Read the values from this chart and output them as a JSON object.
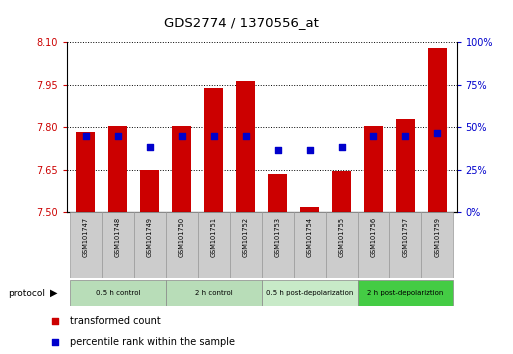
{
  "title": "GDS2774 / 1370556_at",
  "samples": [
    "GSM101747",
    "GSM101748",
    "GSM101749",
    "GSM101750",
    "GSM101751",
    "GSM101752",
    "GSM101753",
    "GSM101754",
    "GSM101755",
    "GSM101756",
    "GSM101757",
    "GSM101759"
  ],
  "bar_tops": [
    7.785,
    7.805,
    7.648,
    7.805,
    7.94,
    7.963,
    7.635,
    7.52,
    7.645,
    7.805,
    7.83,
    8.08
  ],
  "bar_bottoms": [
    7.5,
    7.5,
    7.5,
    7.5,
    7.5,
    7.5,
    7.5,
    7.5,
    7.5,
    7.5,
    7.5,
    7.5
  ],
  "blue_dot_values": [
    7.77,
    7.77,
    7.73,
    7.77,
    7.77,
    7.77,
    7.72,
    7.72,
    7.73,
    7.77,
    7.77,
    7.78
  ],
  "ylim": [
    7.5,
    8.1
  ],
  "yticks_left": [
    7.5,
    7.65,
    7.8,
    7.95,
    8.1
  ],
  "yticks_right": [
    0,
    25,
    50,
    75,
    100
  ],
  "bar_color": "#cc0000",
  "dot_color": "#0000cc",
  "protocol_groups": [
    {
      "label": "0.5 h control",
      "start": 0,
      "end": 3,
      "color": "#b8ddb8"
    },
    {
      "label": "2 h control",
      "start": 3,
      "end": 6,
      "color": "#b8ddb8"
    },
    {
      "label": "0.5 h post-depolarization",
      "start": 6,
      "end": 9,
      "color": "#c8eac8"
    },
    {
      "label": "2 h post-depolariztion",
      "start": 9,
      "end": 12,
      "color": "#44cc44"
    }
  ],
  "legend_red_label": "transformed count",
  "legend_blue_label": "percentile rank within the sample",
  "left_tick_color": "#cc0000",
  "right_tick_color": "#0000cc"
}
